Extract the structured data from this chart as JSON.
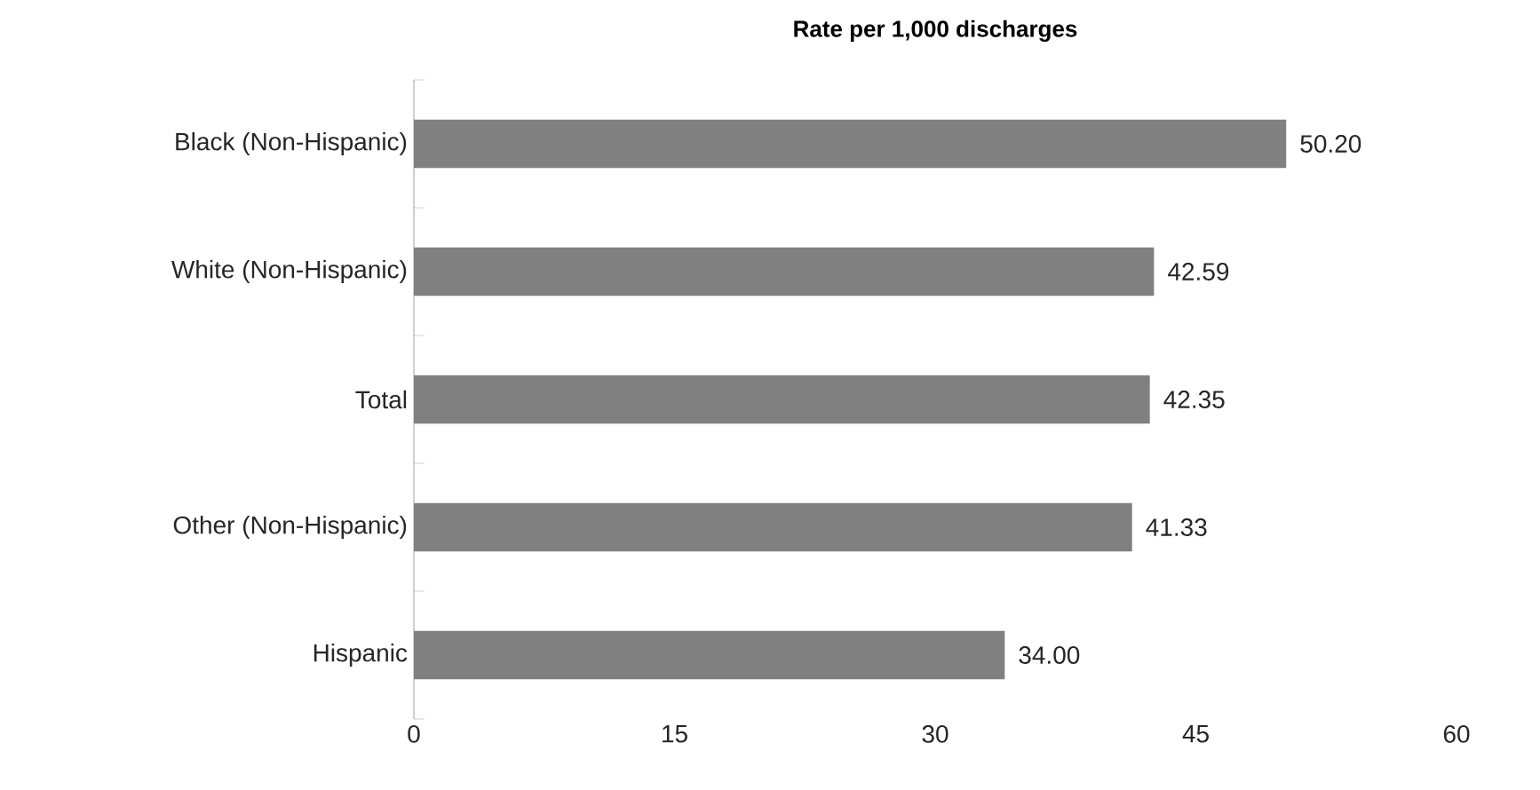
{
  "chart_data": {
    "type": "bar",
    "orientation": "horizontal",
    "title": "Rate per 1,000 discharges",
    "categories": [
      "Black (Non-Hispanic)",
      "White (Non-Hispanic)",
      "Total",
      "Other (Non-Hispanic)",
      "Hispanic"
    ],
    "values": [
      50.2,
      42.59,
      42.35,
      41.33,
      34.0
    ],
    "value_labels": [
      "50.20",
      "42.59",
      "42.35",
      "41.33",
      "34.00"
    ],
    "color": "#808080",
    "xlim": [
      0,
      60
    ],
    "xticks": [
      0,
      15,
      30,
      45,
      60
    ]
  }
}
